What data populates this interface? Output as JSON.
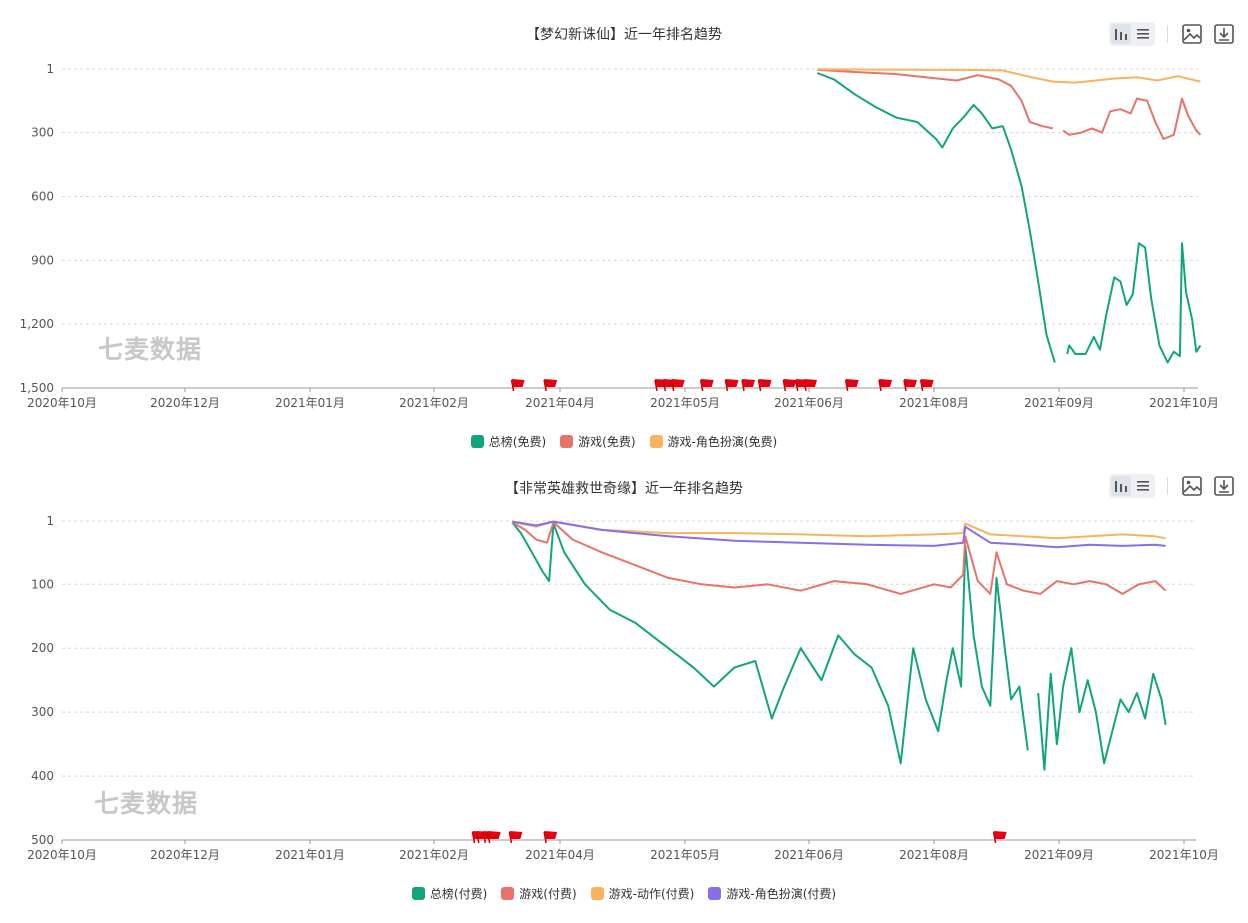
{
  "watermark": "七麦数据",
  "toolbar_icons": [
    "bar-chart-icon",
    "list-icon",
    "image-icon",
    "download-icon"
  ],
  "chart_data": [
    {
      "type": "line",
      "title": "【梦幻新诛仙】近一年排名趋势",
      "y_inverted": true,
      "ylim": [
        1,
        1500
      ],
      "y_ticks": [
        1,
        300,
        600,
        900,
        1200,
        1500
      ],
      "y_tick_labels": [
        "1",
        "300",
        "600",
        "900",
        "1,200",
        "1,500"
      ],
      "x_tick_labels": [
        "2020年10月",
        "2020年12月",
        "2021年01月",
        "2021年02月",
        "2021年04月",
        "2021年05月",
        "2021年06月",
        "2021年08月",
        "2021年09月",
        "2021年10月"
      ],
      "legend_position": "bottom",
      "colors": [
        "#11a57e",
        "#e8736a",
        "#f7b35d"
      ],
      "series": [
        {
          "name": "总榜(免费)",
          "color": "#11a57e",
          "points": [
            [
              "2021-06-01",
              20
            ],
            [
              "2021-06-05",
              50
            ],
            [
              "2021-06-10",
              120
            ],
            [
              "2021-06-15",
              180
            ],
            [
              "2021-06-20",
              230
            ],
            [
              "2021-06-25",
              250
            ],
            [
              "2021-06-30",
              330
            ],
            [
              "2021-07-03",
              370
            ],
            [
              "2021-07-08",
              280
            ],
            [
              "2021-07-13",
              230
            ],
            [
              "2021-07-18",
              170
            ],
            [
              "2021-07-22",
              210
            ],
            [
              "2021-07-27",
              280
            ],
            [
              "2021-08-01",
              270
            ],
            [
              "2021-08-05",
              380
            ],
            [
              "2021-08-10",
              550
            ],
            [
              "2021-08-14",
              760
            ],
            [
              "2021-08-18",
              1000
            ],
            [
              "2021-08-22",
              1250
            ],
            [
              "2021-08-26",
              1380
            ],
            null,
            [
              "2021-09-01",
              1340
            ],
            [
              "2021-09-02",
              1300
            ],
            [
              "2021-09-05",
              1340
            ],
            [
              "2021-09-10",
              1340
            ],
            [
              "2021-09-14",
              1260
            ],
            [
              "2021-09-17",
              1320
            ],
            [
              "2021-09-20",
              1160
            ],
            [
              "2021-09-24",
              980
            ],
            [
              "2021-09-27",
              1000
            ],
            [
              "2021-09-30",
              1110
            ],
            [
              "2021-10-03",
              1060
            ],
            [
              "2021-10-06",
              820
            ],
            [
              "2021-10-09",
              840
            ],
            [
              "2021-10-12",
              1080
            ],
            [
              "2021-10-16",
              1300
            ],
            [
              "2021-10-20",
              1380
            ],
            [
              "2021-10-23",
              1330
            ],
            [
              "2021-10-26",
              1350
            ],
            [
              "2021-10-27",
              820
            ],
            [
              "2021-10-29",
              1050
            ],
            [
              "2021-11-01",
              1180
            ],
            [
              "2021-11-03",
              1330
            ],
            [
              "2021-11-05",
              1300
            ]
          ]
        },
        {
          "name": "游戏(免费)",
          "color": "#e8736a",
          "points": [
            [
              "2021-06-01",
              5
            ],
            [
              "2021-06-10",
              15
            ],
            [
              "2021-06-20",
              25
            ],
            [
              "2021-06-30",
              45
            ],
            [
              "2021-07-10",
              55
            ],
            [
              "2021-07-20",
              30
            ],
            [
              "2021-07-30",
              50
            ],
            [
              "2021-08-05",
              80
            ],
            [
              "2021-08-10",
              150
            ],
            [
              "2021-08-14",
              250
            ],
            [
              "2021-08-20",
              270
            ],
            [
              "2021-08-25",
              280
            ],
            null,
            [
              "2021-08-30",
              290
            ],
            [
              "2021-09-02",
              310
            ],
            [
              "2021-09-08",
              300
            ],
            [
              "2021-09-13",
              280
            ],
            [
              "2021-09-18",
              300
            ],
            [
              "2021-09-22",
              200
            ],
            [
              "2021-09-27",
              190
            ],
            [
              "2021-10-02",
              210
            ],
            [
              "2021-10-05",
              140
            ],
            [
              "2021-10-10",
              150
            ],
            [
              "2021-10-14",
              250
            ],
            [
              "2021-10-18",
              330
            ],
            [
              "2021-10-23",
              310
            ],
            [
              "2021-10-27",
              140
            ],
            [
              "2021-10-30",
              220
            ],
            [
              "2021-11-03",
              290
            ],
            [
              "2021-11-05",
              310
            ]
          ]
        },
        {
          "name": "游戏-角色扮演(免费)",
          "color": "#f7b35d",
          "points": [
            [
              "2021-06-01",
              2
            ],
            [
              "2021-06-15",
              4
            ],
            [
              "2021-07-01",
              5
            ],
            [
              "2021-07-15",
              5
            ],
            [
              "2021-08-01",
              8
            ],
            [
              "2021-08-15",
              40
            ],
            [
              "2021-08-25",
              60
            ],
            [
              "2021-09-05",
              65
            ],
            [
              "2021-09-15",
              55
            ],
            [
              "2021-09-25",
              45
            ],
            [
              "2021-10-05",
              40
            ],
            [
              "2021-10-15",
              55
            ],
            [
              "2021-10-25",
              35
            ],
            [
              "2021-11-05",
              60
            ]
          ]
        }
      ],
      "flags": [
        "2021-03-11",
        "2021-03-26",
        "2021-04-24",
        "2021-04-26",
        "2021-04-28",
        "2021-05-05",
        "2021-05-11",
        "2021-05-15",
        "2021-05-19",
        "2021-05-25",
        "2021-05-28",
        "2021-05-30",
        "2021-06-09",
        "2021-06-17",
        "2021-06-23",
        "2021-06-27"
      ]
    },
    {
      "type": "line",
      "title": "【非常英雄救世奇缘】近一年排名趋势",
      "y_inverted": true,
      "ylim": [
        1,
        500
      ],
      "y_ticks": [
        1,
        100,
        200,
        300,
        400,
        500
      ],
      "y_tick_labels": [
        "1",
        "100",
        "200",
        "300",
        "400",
        "500"
      ],
      "x_tick_labels": [
        "2020年10月",
        "2020年12月",
        "2021年01月",
        "2021年02月",
        "2021年04月",
        "2021年05月",
        "2021年06月",
        "2021年08月",
        "2021年09月",
        "2021年10月"
      ],
      "legend_position": "bottom",
      "colors": [
        "#11a57e",
        "#e8736a",
        "#f7b35d",
        "#8a6ee8"
      ],
      "series": [
        {
          "name": "总榜(付费)",
          "color": "#11a57e",
          "points": [
            [
              "2021-03-09",
              3
            ],
            [
              "2021-03-13",
              20
            ],
            [
              "2021-03-18",
              50
            ],
            [
              "2021-03-23",
              80
            ],
            [
              "2021-03-26",
              95
            ],
            [
              "2021-03-28",
              5
            ],
            [
              "2021-04-01",
              50
            ],
            [
              "2021-04-06",
              100
            ],
            [
              "2021-04-12",
              140
            ],
            [
              "2021-04-18",
              160
            ],
            [
              "2021-04-24",
              190
            ],
            [
              "2021-04-28",
              210
            ],
            [
              "2021-05-02",
              230
            ],
            [
              "2021-05-07",
              260
            ],
            [
              "2021-05-12",
              230
            ],
            [
              "2021-05-17",
              220
            ],
            [
              "2021-05-21",
              310
            ],
            [
              "2021-05-24",
              260
            ],
            [
              "2021-05-28",
              200
            ],
            [
              "2021-06-02",
              250
            ],
            [
              "2021-06-06",
              180
            ],
            [
              "2021-06-10",
              210
            ],
            [
              "2021-06-14",
              230
            ],
            [
              "2021-06-18",
              290
            ],
            [
              "2021-06-21",
              380
            ],
            [
              "2021-06-24",
              200
            ],
            [
              "2021-06-27",
              280
            ],
            [
              "2021-07-01",
              330
            ],
            [
              "2021-07-05",
              250
            ],
            [
              "2021-07-08",
              200
            ],
            [
              "2021-07-12",
              260
            ],
            [
              "2021-07-14",
              40
            ],
            [
              "2021-07-18",
              180
            ],
            [
              "2021-07-22",
              260
            ],
            [
              "2021-07-26",
              290
            ],
            [
              "2021-07-29",
              90
            ],
            [
              "2021-08-02",
              200
            ],
            [
              "2021-08-05",
              280
            ],
            [
              "2021-08-09",
              260
            ],
            [
              "2021-08-13",
              360
            ],
            null,
            [
              "2021-08-18",
              270
            ],
            [
              "2021-08-21",
              390
            ],
            [
              "2021-08-24",
              240
            ],
            [
              "2021-08-27",
              350
            ],
            [
              "2021-08-30",
              260
            ],
            [
              "2021-09-03",
              200
            ],
            [
              "2021-09-07",
              300
            ],
            [
              "2021-09-11",
              250
            ],
            [
              "2021-09-15",
              300
            ],
            [
              "2021-09-19",
              380
            ],
            [
              "2021-09-23",
              330
            ],
            [
              "2021-09-27",
              280
            ],
            [
              "2021-10-01",
              300
            ],
            [
              "2021-10-05",
              270
            ],
            [
              "2021-10-09",
              310
            ],
            [
              "2021-10-13",
              240
            ],
            [
              "2021-10-17",
              280
            ],
            [
              "2021-10-19",
              320
            ]
          ]
        },
        {
          "name": "游戏(付费)",
          "color": "#e8736a",
          "points": [
            [
              "2021-03-09",
              3
            ],
            [
              "2021-03-15",
              15
            ],
            [
              "2021-03-20",
              30
            ],
            [
              "2021-03-25",
              35
            ],
            [
              "2021-03-28",
              3
            ],
            [
              "2021-04-03",
              30
            ],
            [
              "2021-04-10",
              50
            ],
            [
              "2021-04-18",
              70
            ],
            [
              "2021-04-26",
              90
            ],
            [
              "2021-05-04",
              100
            ],
            [
              "2021-05-12",
              105
            ],
            [
              "2021-05-20",
              100
            ],
            [
              "2021-05-28",
              110
            ],
            [
              "2021-06-05",
              95
            ],
            [
              "2021-06-13",
              100
            ],
            [
              "2021-06-21",
              115
            ],
            [
              "2021-06-29",
              100
            ],
            [
              "2021-07-07",
              105
            ],
            [
              "2021-07-13",
              85
            ],
            [
              "2021-07-14",
              25
            ],
            [
              "2021-07-20",
              95
            ],
            [
              "2021-07-26",
              115
            ],
            [
              "2021-07-29",
              50
            ],
            [
              "2021-08-03",
              100
            ],
            [
              "2021-08-11",
              110
            ],
            [
              "2021-08-19",
              115
            ],
            [
              "2021-08-27",
              95
            ],
            [
              "2021-09-04",
              100
            ],
            [
              "2021-09-12",
              95
            ],
            [
              "2021-09-20",
              100
            ],
            [
              "2021-09-28",
              115
            ],
            [
              "2021-10-06",
              100
            ],
            [
              "2021-10-14",
              95
            ],
            [
              "2021-10-19",
              110
            ]
          ]
        },
        {
          "name": "游戏-动作(付费)",
          "color": "#f7b35d",
          "points": [
            [
              "2021-03-09",
              2
            ],
            [
              "2021-03-20",
              10
            ],
            [
              "2021-03-28",
              2
            ],
            [
              "2021-04-10",
              15
            ],
            [
              "2021-04-26",
              20
            ],
            [
              "2021-05-12",
              20
            ],
            [
              "2021-05-28",
              22
            ],
            [
              "2021-06-13",
              25
            ],
            [
              "2021-06-29",
              22
            ],
            [
              "2021-07-13",
              20
            ],
            [
              "2021-07-14",
              5
            ],
            [
              "2021-07-26",
              22
            ],
            [
              "2021-08-11",
              25
            ],
            [
              "2021-08-27",
              28
            ],
            [
              "2021-09-12",
              25
            ],
            [
              "2021-09-28",
              22
            ],
            [
              "2021-10-14",
              25
            ],
            [
              "2021-10-19",
              28
            ]
          ]
        },
        {
          "name": "游戏-角色扮演(付费)",
          "color": "#8a6ee8",
          "points": [
            [
              "2021-03-09",
              2
            ],
            [
              "2021-03-20",
              8
            ],
            [
              "2021-03-28",
              2
            ],
            [
              "2021-04-10",
              15
            ],
            [
              "2021-04-26",
              25
            ],
            [
              "2021-05-12",
              32
            ],
            [
              "2021-05-28",
              35
            ],
            [
              "2021-06-13",
              38
            ],
            [
              "2021-06-29",
              40
            ],
            [
              "2021-07-13",
              35
            ],
            [
              "2021-07-14",
              10
            ],
            [
              "2021-07-26",
              35
            ],
            [
              "2021-08-11",
              38
            ],
            [
              "2021-08-27",
              42
            ],
            [
              "2021-09-12",
              38
            ],
            [
              "2021-09-28",
              40
            ],
            [
              "2021-10-14",
              38
            ],
            [
              "2021-10-19",
              40
            ]
          ]
        }
      ],
      "flags": [
        "2021-02-21",
        "2021-02-23",
        "2021-02-26",
        "2021-02-28",
        "2021-03-10",
        "2021-03-26",
        "2021-07-30"
      ]
    }
  ]
}
